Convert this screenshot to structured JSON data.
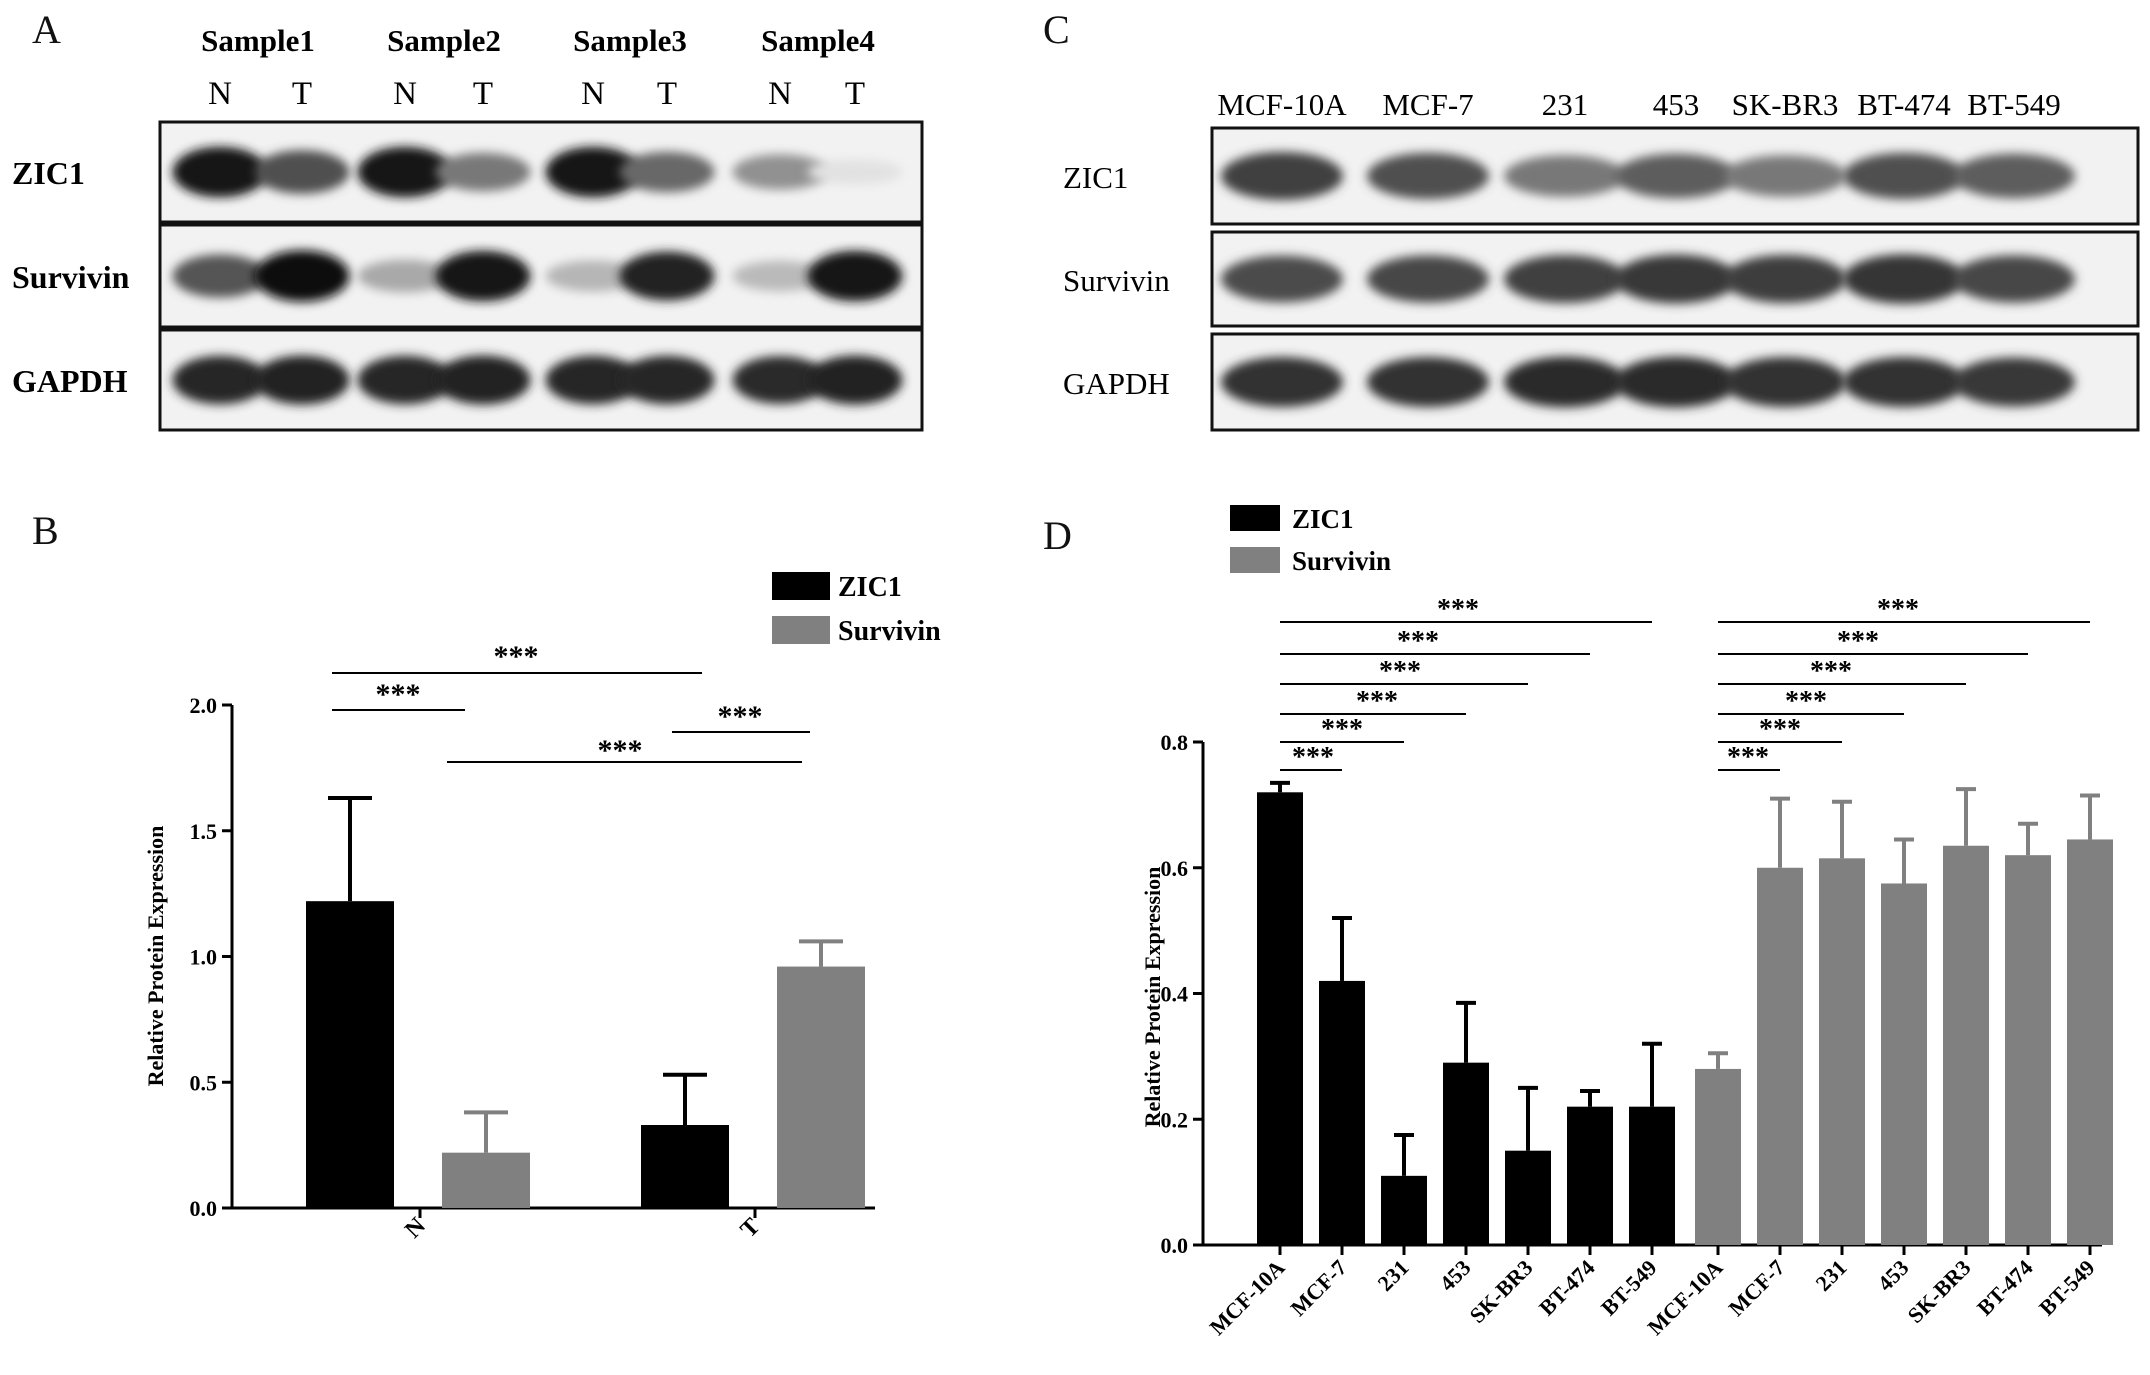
{
  "panels": {
    "a": {
      "letter": "A",
      "samples": [
        "Sample1",
        "Sample2",
        "Sample3",
        "Sample4"
      ],
      "lanes": [
        "N",
        "T",
        "N",
        "T",
        "N",
        "T",
        "N",
        "T"
      ],
      "proteins": [
        "ZIC1",
        "Survivin",
        "GAPDH"
      ],
      "band_intensity": {
        "ZIC1": [
          0.95,
          0.72,
          0.95,
          0.55,
          0.95,
          0.62,
          0.45,
          0.12
        ],
        "Survivin": [
          0.7,
          0.98,
          0.35,
          0.95,
          0.3,
          0.9,
          0.28,
          0.95
        ],
        "GAPDH": [
          0.88,
          0.9,
          0.88,
          0.9,
          0.88,
          0.88,
          0.86,
          0.9
        ]
      }
    },
    "b": {
      "letter": "B"
    },
    "c": {
      "letter": "C",
      "lanes": [
        "MCF-10A",
        "MCF-7",
        "231",
        "453",
        "SK-BR3",
        "BT-474",
        "BT-549"
      ],
      "proteins": [
        "ZIC1",
        "Survivin",
        "GAPDH"
      ],
      "band_intensity": {
        "ZIC1": [
          0.85,
          0.78,
          0.6,
          0.72,
          0.6,
          0.78,
          0.72
        ],
        "Survivin": [
          0.8,
          0.82,
          0.85,
          0.88,
          0.86,
          0.9,
          0.82
        ],
        "GAPDH": [
          0.92,
          0.92,
          0.95,
          0.95,
          0.92,
          0.92,
          0.88
        ]
      }
    },
    "d": {
      "letter": "D"
    }
  },
  "colors": {
    "zic1": "#000000",
    "survivin": "#808080"
  },
  "chart_data": [
    {
      "panel": "B",
      "type": "bar",
      "categories": [
        "N",
        "T"
      ],
      "series": [
        {
          "name": "ZIC1",
          "values": [
            1.22,
            0.33
          ],
          "errors": [
            0.41,
            0.2
          ]
        },
        {
          "name": "Survivin",
          "values": [
            0.22,
            0.96
          ],
          "errors": [
            0.16,
            0.1
          ]
        }
      ],
      "ylabel": "Relative Protein Expression",
      "xlabel": "",
      "ylim": [
        0,
        2.0
      ],
      "yticks": [
        "0.0",
        "0.5",
        "1.0",
        "1.5",
        "2.0"
      ],
      "legend": [
        "ZIC1",
        "Survivin"
      ],
      "legend_position": "top-right",
      "significance": [
        {
          "label": "***",
          "from": "N-ZIC1",
          "to": "N-Survivin"
        },
        {
          "label": "***",
          "from": "N-ZIC1",
          "to": "T-ZIC1"
        },
        {
          "label": "***",
          "from": "T-ZIC1",
          "to": "T-Survivin"
        },
        {
          "label": "***",
          "from": "N-Survivin",
          "to": "T-Survivin"
        }
      ]
    },
    {
      "panel": "D",
      "type": "bar",
      "categories": [
        "MCF-10A",
        "MCF-7",
        "231",
        "453",
        "SK-BR3",
        "BT-474",
        "BT-549"
      ],
      "series": [
        {
          "name": "ZIC1",
          "values": [
            0.72,
            0.42,
            0.11,
            0.29,
            0.15,
            0.22,
            0.22
          ],
          "errors": [
            0.015,
            0.1,
            0.065,
            0.095,
            0.1,
            0.025,
            0.1
          ]
        },
        {
          "name": "Survivin",
          "values": [
            0.28,
            0.6,
            0.615,
            0.575,
            0.635,
            0.62,
            0.645
          ],
          "errors": [
            0.025,
            0.11,
            0.09,
            0.07,
            0.09,
            0.05,
            0.07
          ]
        }
      ],
      "ylabel": "Relative Protein Expression",
      "xlabel": "",
      "ylim": [
        0,
        0.8
      ],
      "yticks": [
        "0.0",
        "0.2",
        "0.4",
        "0.6",
        "0.8"
      ],
      "legend": [
        "ZIC1",
        "Survivin"
      ],
      "legend_position": "top-left",
      "significance_label": "***",
      "significance_note": "each cell line compared with MCF-10A within each protein group"
    }
  ]
}
